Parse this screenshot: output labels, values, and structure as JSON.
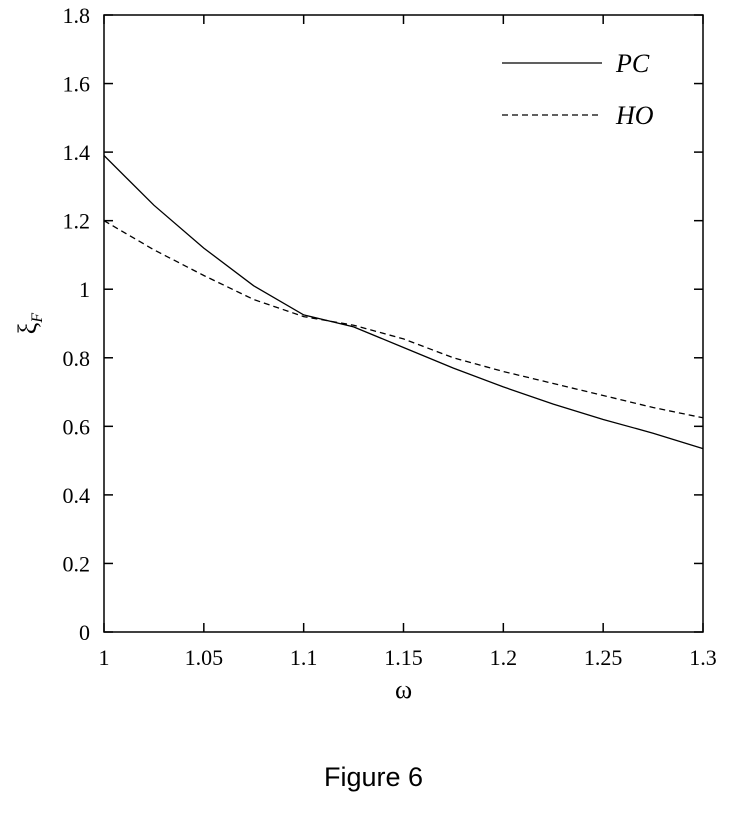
{
  "caption": "Figure 6",
  "chart_data": {
    "type": "line",
    "title": "",
    "xlabel": "ω",
    "ylabel": "ξ",
    "ylabel_subscript": "F",
    "xlim": [
      1.0,
      1.3
    ],
    "ylim": [
      0,
      1.8
    ],
    "xticks": [
      1,
      1.05,
      1.1,
      1.15,
      1.2,
      1.25,
      1.3
    ],
    "xtick_labels": [
      "1",
      "1.05",
      "1.1",
      "1.15",
      "1.2",
      "1.25",
      "1.3"
    ],
    "yticks": [
      0,
      0.2,
      0.4,
      0.6,
      0.8,
      1,
      1.2,
      1.4,
      1.6,
      1.8
    ],
    "ytick_labels": [
      "0",
      "0.2",
      "0.4",
      "0.6",
      "0.8",
      "1",
      "1.2",
      "1.4",
      "1.6",
      "1.8"
    ],
    "grid": false,
    "legend_position": "top-right",
    "series": [
      {
        "name": "PC",
        "style": "solid",
        "color": "#000000",
        "x": [
          1.0,
          1.025,
          1.05,
          1.075,
          1.1,
          1.125,
          1.15,
          1.175,
          1.2,
          1.225,
          1.25,
          1.275,
          1.3
        ],
        "y": [
          1.39,
          1.245,
          1.12,
          1.01,
          0.925,
          0.89,
          0.83,
          0.77,
          0.715,
          0.665,
          0.62,
          0.58,
          0.535
        ]
      },
      {
        "name": "HO",
        "style": "dashed",
        "color": "#000000",
        "x": [
          1.0,
          1.025,
          1.05,
          1.075,
          1.1,
          1.125,
          1.15,
          1.175,
          1.2,
          1.225,
          1.25,
          1.275,
          1.3
        ],
        "y": [
          1.2,
          1.115,
          1.04,
          0.97,
          0.92,
          0.895,
          0.855,
          0.8,
          0.76,
          0.725,
          0.69,
          0.655,
          0.625
        ]
      }
    ]
  }
}
